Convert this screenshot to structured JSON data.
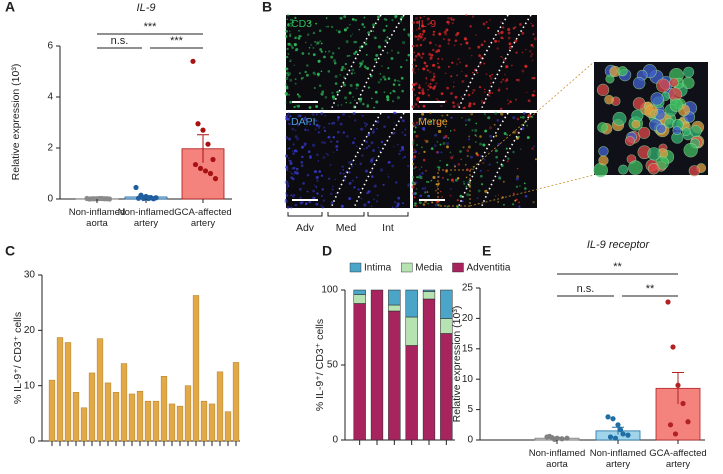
{
  "chart_data": [
    {
      "panel": "A",
      "type": "bar",
      "title": "IL-9",
      "ylabel": "Relative expression (10³)",
      "categories": [
        "Non-inflamed\naorta",
        "Non-inflamed\nartery",
        "GCA-affected\nartery"
      ],
      "values": [
        0.01,
        0.08,
        1.97
      ],
      "errors": [
        0.005,
        0.05,
        0.55
      ],
      "points": [
        [
          0.02,
          0.01,
          0.01,
          0.02,
          0.01,
          0.0,
          0.01,
          0.02,
          0.01,
          0.0
        ],
        [
          0.45,
          0.15,
          0.1,
          0.05,
          0.05,
          0.03,
          0.02,
          0.02,
          0.01
        ],
        [
          5.4,
          2.95,
          2.7,
          2.15,
          1.55,
          1.35,
          1.2,
          1.1,
          1.0,
          0.8
        ]
      ],
      "bar_colors": [
        "#c9c9c9",
        "#9fd4ea",
        "#f4837d"
      ],
      "point_colors": [
        "#8a8a8a",
        "#1f5f9f",
        "#a81212"
      ],
      "ylim": [
        0,
        6
      ],
      "yticks": [
        0,
        2,
        4,
        6
      ],
      "significance": [
        "***",
        "n.s.",
        "***"
      ]
    },
    {
      "panel": "C",
      "type": "bar",
      "ylabel": "% IL-9⁺/ CD3⁺ cells",
      "values": [
        11,
        18.7,
        17.8,
        8.8,
        6,
        12.3,
        18.5,
        10.5,
        8.8,
        14,
        8.5,
        9,
        7.2,
        7.2,
        11.7,
        6.7,
        6.3,
        10,
        26.3,
        7.2,
        6.7,
        12.5,
        5.3,
        14.2
      ],
      "color": "#e3a948",
      "ylim": [
        0,
        30
      ],
      "yticks": [
        0,
        10,
        20,
        30
      ]
    },
    {
      "panel": "D",
      "type": "stacked_bar",
      "ylabel": "% IL-9⁺/ CD3⁺ cells",
      "series": [
        {
          "name": "Intima",
          "color": "#4aa5c8",
          "values": [
            3,
            0,
            10,
            18,
            1,
            19
          ]
        },
        {
          "name": "Media",
          "color": "#b7e3b3",
          "values": [
            6,
            0,
            4,
            19,
            5,
            10
          ]
        },
        {
          "name": "Adventitia",
          "color": "#a8245f",
          "values": [
            91,
            100,
            86,
            63,
            94,
            71
          ]
        }
      ],
      "ylim": [
        0,
        100
      ],
      "yticks": [
        0,
        50,
        100
      ]
    },
    {
      "panel": "E",
      "type": "bar",
      "title": "IL-9 receptor",
      "ylabel": "Relative expression (10³)",
      "categories": [
        "Non-inflamed\naorta",
        "Non-inflamed\nartery",
        "GCA-affected\nartery"
      ],
      "values": [
        0.3,
        1.5,
        8.5
      ],
      "errors": [
        0.15,
        0.6,
        2.6
      ],
      "points": [
        [
          0.5,
          0.4,
          0.3,
          0.2,
          0.3,
          0.6,
          0.1
        ],
        [
          3.8,
          3.5,
          2.5,
          1.0,
          0.8,
          0.5,
          0.3,
          1.7
        ],
        [
          22.7,
          15.3,
          9.0,
          6.0,
          3.0,
          2.5,
          1.0
        ]
      ],
      "bar_colors": [
        "#c9c9c9",
        "#9fd4ea",
        "#f4837d"
      ],
      "point_colors": [
        "#808080",
        "#1f6fa5",
        "#b22222"
      ],
      "ylim": [
        0,
        25
      ],
      "yticks": [
        0,
        5,
        10,
        15,
        20,
        25
      ],
      "significance": [
        "**",
        "n.s.",
        "**"
      ]
    }
  ],
  "image_panel": {
    "panel": "B",
    "channels": [
      "CD3",
      "IL-9",
      "DAPI",
      "Merge"
    ],
    "layers": [
      "Adv",
      "Med",
      "Int"
    ]
  }
}
